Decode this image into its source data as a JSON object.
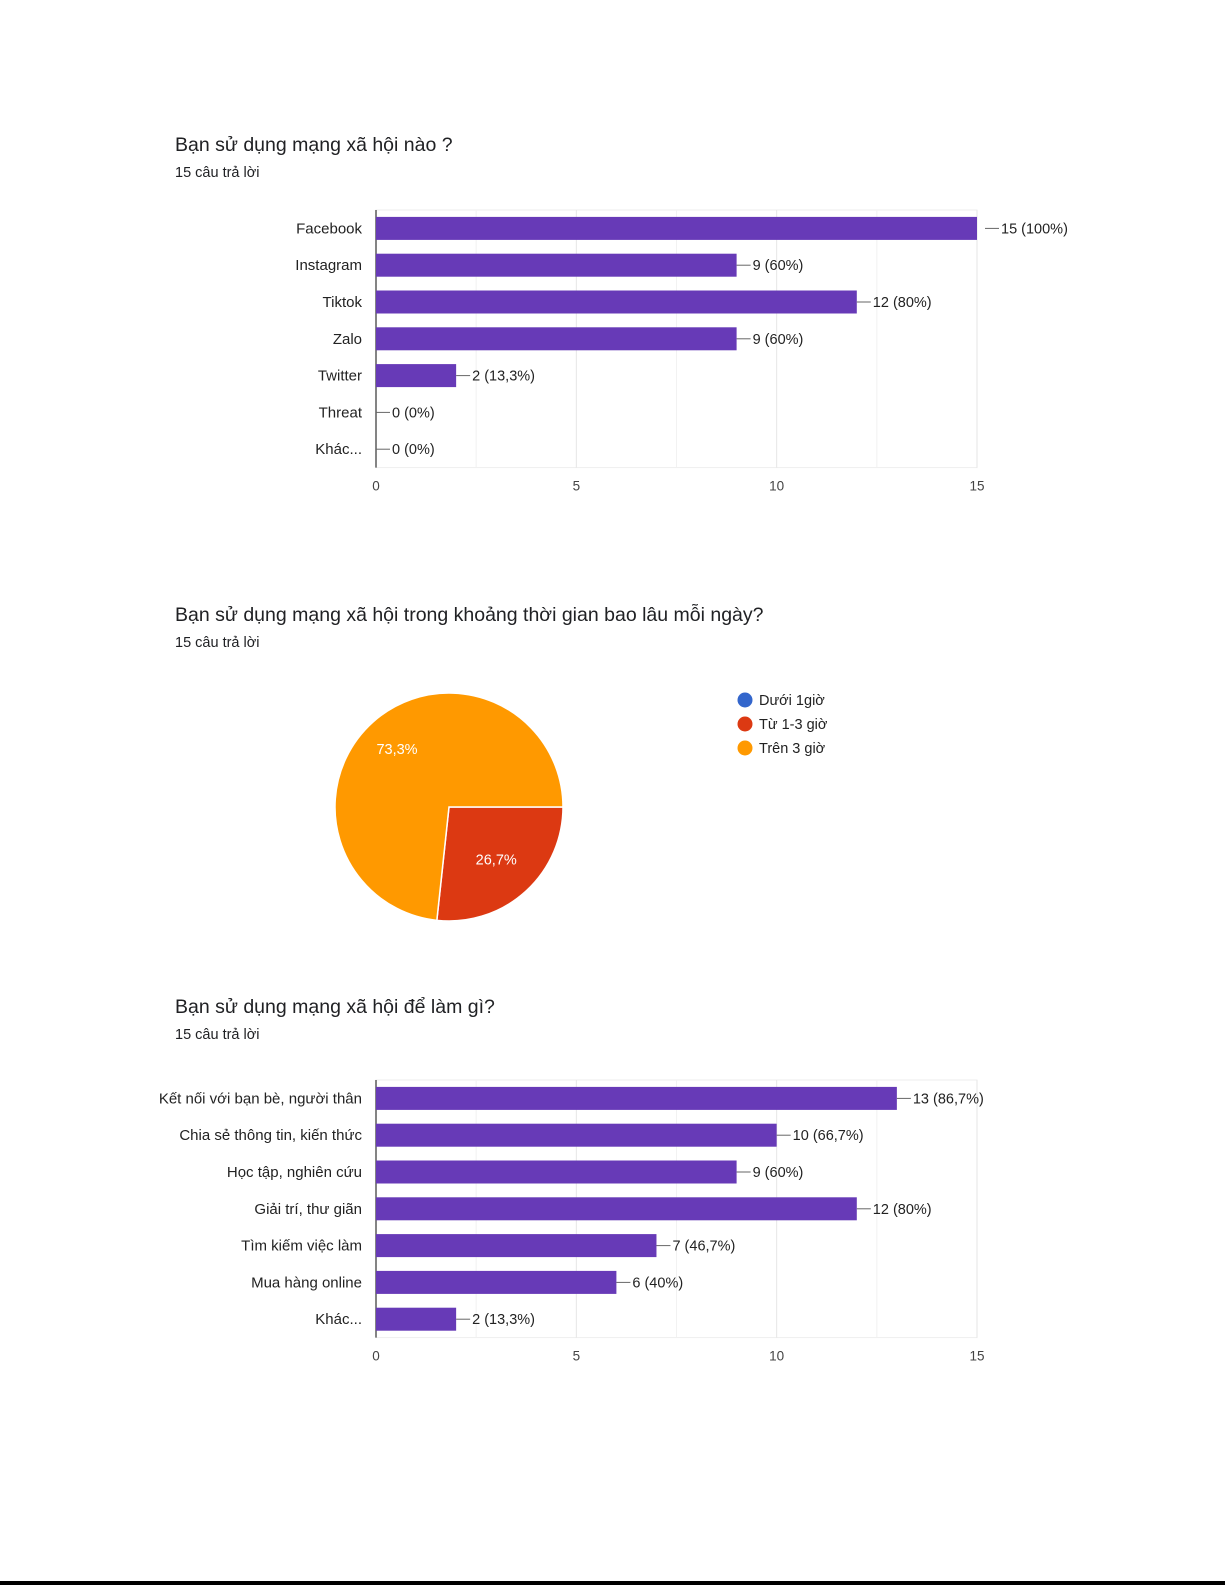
{
  "chart_data": [
    {
      "type": "bar",
      "orientation": "horizontal",
      "title": "Bạn sử dụng mạng xã hội nào ?",
      "subtitle": "15 câu trả lời",
      "categories": [
        "Facebook",
        "Instagram",
        "Tiktok",
        "Zalo",
        "Twitter",
        "Threat",
        "Khác..."
      ],
      "values": [
        15,
        9,
        12,
        9,
        2,
        0,
        0
      ],
      "data_labels": [
        "15 (100%)",
        "9 (60%)",
        "12 (80%)",
        "9 (60%)",
        "2 (13,3%)",
        "0 (0%)",
        "0 (0%)"
      ],
      "xlim": [
        0,
        15
      ],
      "xticks": [
        0,
        5,
        10,
        15
      ],
      "grid": true,
      "color": "#673ab7"
    },
    {
      "type": "pie",
      "title": "Bạn sử dụng mạng xã hội trong khoảng thời gian bao lâu mỗi ngày?",
      "subtitle": "15 câu trả lời",
      "labels": [
        "Dưới 1giờ",
        "Từ 1-3 giờ",
        "Trên 3 giờ"
      ],
      "values": [
        0,
        26.7,
        73.3
      ],
      "slice_labels": [
        "",
        "26,7%",
        "73,3%"
      ],
      "colors": [
        "#3366cc",
        "#dc3912",
        "#ff9900"
      ],
      "legend": "right"
    },
    {
      "type": "bar",
      "orientation": "horizontal",
      "title": "Bạn sử dụng mạng xã hội để làm gì?",
      "subtitle": "15 câu trả lời",
      "categories": [
        "Kết nối với bạn bè, người thân",
        "Chia sẻ thông tin, kiến thức",
        "Học tập, nghiên cứu",
        "Giải trí, thư giãn",
        "Tìm kiếm việc làm",
        "Mua hàng online",
        "Khác..."
      ],
      "values": [
        13,
        10,
        9,
        12,
        7,
        6,
        2
      ],
      "data_labels": [
        "13 (86,7%)",
        "10 (66,7%)",
        "9 (60%)",
        "12 (80%)",
        "7 (46,7%)",
        "6 (40%)",
        "2 (13,3%)"
      ],
      "xlim": [
        0,
        15
      ],
      "xticks": [
        0,
        5,
        10,
        15
      ],
      "grid": true,
      "color": "#673ab7"
    }
  ]
}
